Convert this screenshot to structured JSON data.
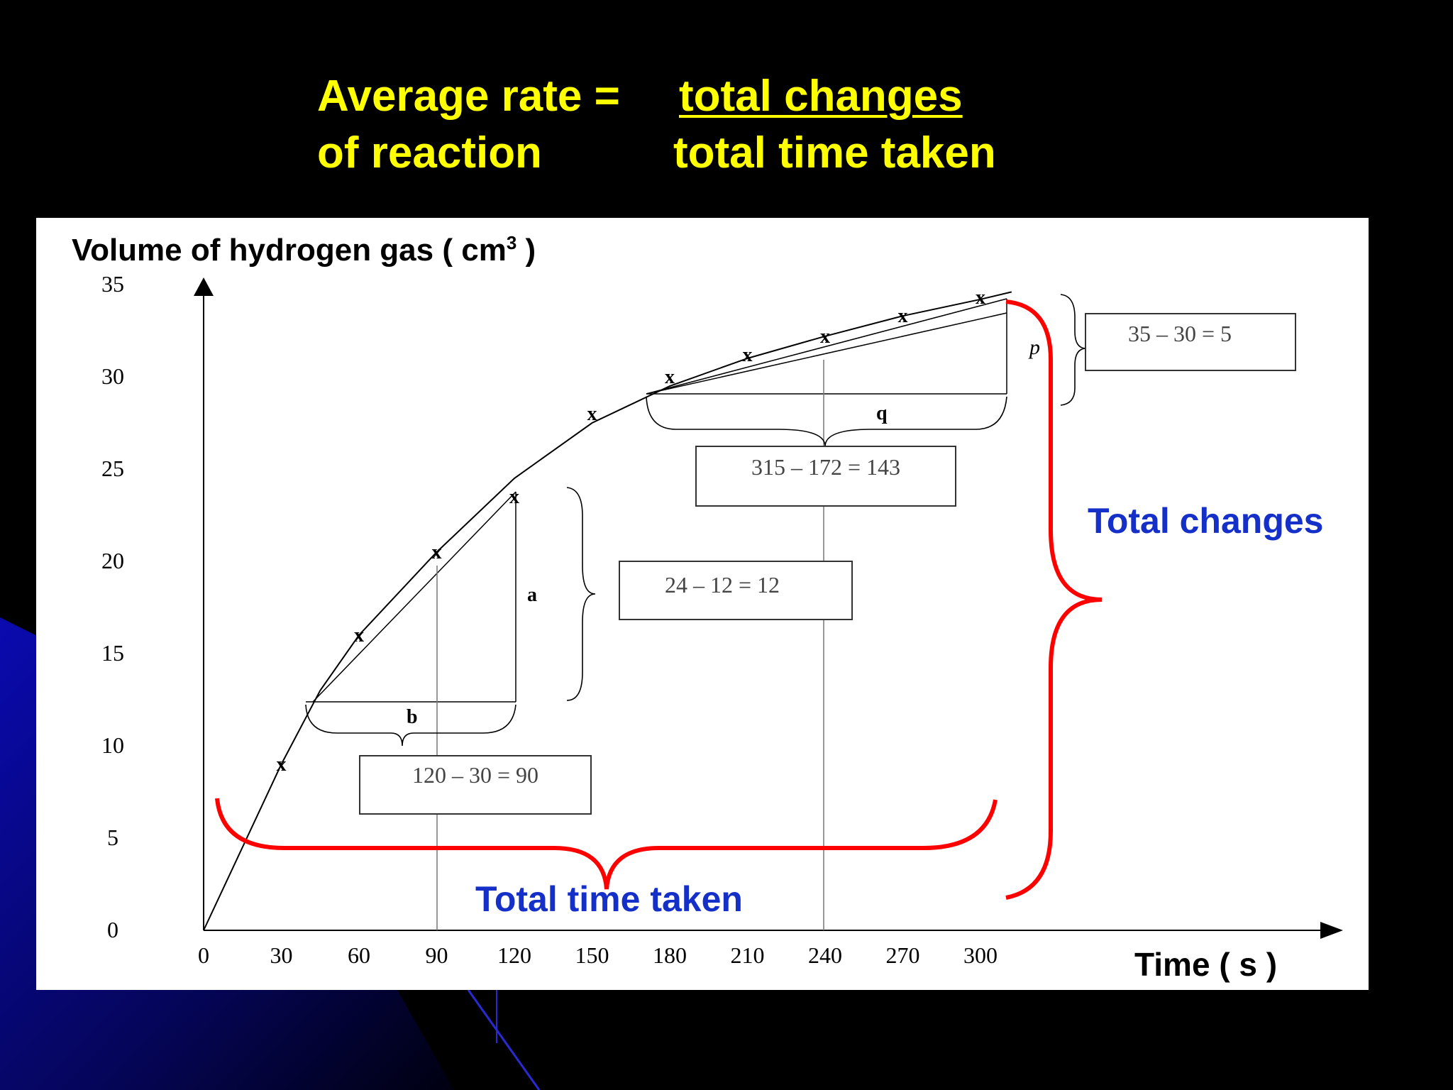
{
  "formula": {
    "lhs_line1": "Average rate =",
    "lhs_line2": "of reaction",
    "numerator": "total changes",
    "denominator": "total time taken"
  },
  "colors": {
    "background": "#000000",
    "formula_text": "#ffff00",
    "annotation_blue": "#1530c8",
    "brace_red": "#ff0000",
    "background_accent": "#0a0a8c"
  },
  "chart_data": {
    "type": "line",
    "ylabel": "Volume of hydrogen gas ( cm",
    "ylabel_sup": "3",
    "ylabel_close": " )",
    "xlabel": "Time ( s )",
    "x_ticks": [
      "0",
      "30",
      "60",
      "90",
      "120",
      "150",
      "180",
      "210",
      "240",
      "270",
      "300"
    ],
    "y_ticks": [
      "0",
      "5",
      "10",
      "15",
      "20",
      "25",
      "30",
      "35"
    ],
    "xlim": [
      0,
      330
    ],
    "ylim": [
      0,
      36
    ],
    "grid": false,
    "series": [
      {
        "marker": "x",
        "x": [
          30,
          60,
          90,
          120,
          150,
          180,
          210,
          240,
          270,
          300
        ],
        "y": [
          9,
          16,
          20.5,
          23.5,
          28,
          30,
          31.2,
          32.2,
          33.3,
          34.3
        ]
      }
    ],
    "curve": {
      "x": [
        0,
        30,
        45,
        60,
        90,
        120,
        150,
        180,
        210,
        240,
        270,
        300,
        312
      ],
      "y": [
        0,
        9,
        13,
        16,
        20.5,
        24.5,
        27.5,
        29.5,
        31,
        32.2,
        33.3,
        34.2,
        34.6
      ]
    },
    "annotations": {
      "label_a": "a",
      "label_b": "b",
      "label_p": "p",
      "label_q": "q",
      "box_b": "120 – 30 = 90",
      "box_a": "24 – 12 = 12",
      "box_q": "315 – 172 = 143",
      "box_p": "35 – 30 = 5",
      "total_changes": "Total changes",
      "total_time_taken": "Total time taken"
    }
  }
}
